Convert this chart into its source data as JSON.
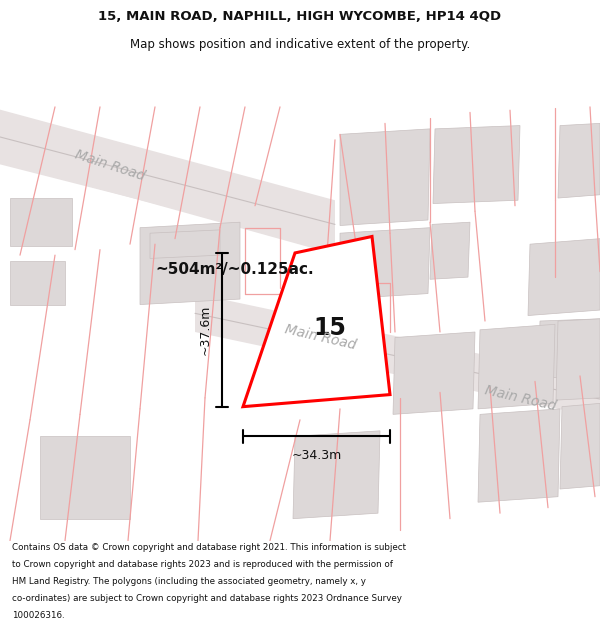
{
  "title_line1": "15, MAIN ROAD, NAPHILL, HIGH WYCOMBE, HP14 4QD",
  "title_line2": "Map shows position and indicative extent of the property.",
  "footer_text": "Contains OS data © Crown copyright and database right 2021. This information is subject to Crown copyright and database rights 2023 and is reproduced with the permission of HM Land Registry. The polygons (including the associated geometry, namely x, y co-ordinates) are subject to Crown copyright and database rights 2023 Ordnance Survey 100026316.",
  "area_label": "~504m²/~0.125ac.",
  "property_number": "15",
  "dim_width": "~34.3m",
  "dim_height": "~37.6m",
  "road_label_1": "Main Road",
  "road_label_2": "Main Road",
  "road_label_3": "Main Road",
  "map_bg": "#f5efef",
  "road_fill": "#e8e2e2",
  "road_edge": "#c8c0c0",
  "building_fill": "#ddd8d8",
  "building_edge": "#c8c0c0",
  "plot_line_color": "#f0a0a0",
  "property_fill": "#ffffff",
  "property_edge": "#ff0000"
}
